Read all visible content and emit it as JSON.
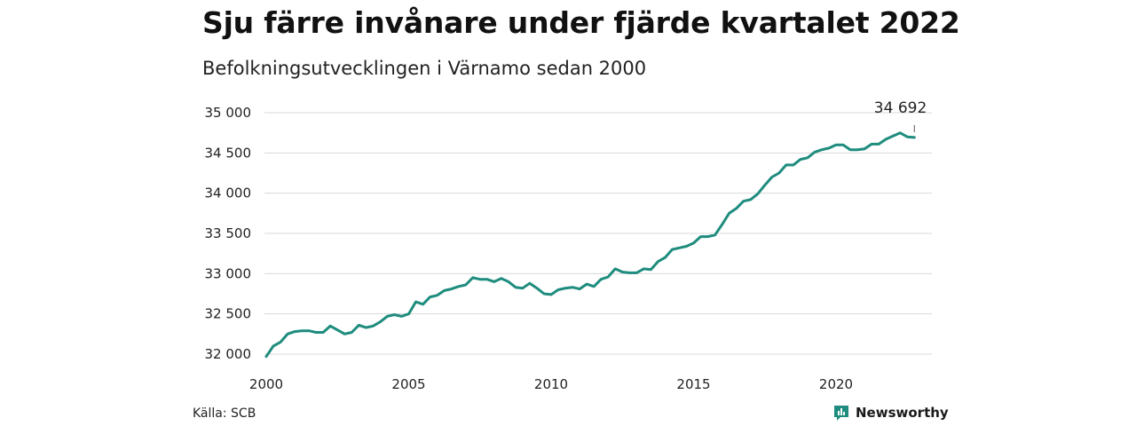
{
  "title": "Sju färre invånare under fjärde kvartalet 2022",
  "subtitle": "Befolkningsutvecklingen i Värnamo sedan 2000",
  "source": "Källa: SCB",
  "brand": {
    "name": "Newsworthy",
    "color": "#1e8c7e"
  },
  "annotation": {
    "label": "34 692"
  },
  "chart_data": {
    "type": "line",
    "title": "Sju färre invånare under fjärde kvartalet 2022",
    "subtitle": "Befolkningsutvecklingen i Värnamo sedan 2000",
    "xlabel": "",
    "ylabel": "",
    "xlim": [
      2000,
      2023.75
    ],
    "ylim": [
      32000,
      35000
    ],
    "x_ticks": [
      2000,
      2005,
      2010,
      2015,
      2020
    ],
    "x_tick_labels": [
      "2000",
      "2005",
      "2010",
      "2015",
      "2020"
    ],
    "y_ticks": [
      32000,
      32500,
      33000,
      33500,
      34000,
      34500,
      35000
    ],
    "y_tick_labels": [
      "32 000",
      "32 500",
      "33 000",
      "33 500",
      "34 000",
      "34 500",
      "35 000"
    ],
    "grid": "horizontal",
    "line_color": "#1e8c7e",
    "series": [
      {
        "x": [
          2000.0,
          2000.25,
          2000.5,
          2000.75,
          2001.0,
          2001.25,
          2001.5,
          2001.75,
          2002.0,
          2002.25,
          2002.5,
          2002.75,
          2003.0,
          2003.25,
          2003.5,
          2003.75,
          2004.0,
          2004.25,
          2004.5,
          2004.75,
          2005.0,
          2005.25,
          2005.5,
          2005.75,
          2006.0,
          2006.25,
          2006.5,
          2006.75,
          2007.0,
          2007.25,
          2007.5,
          2007.75,
          2008.0,
          2008.25,
          2008.5,
          2008.75,
          2009.0,
          2009.25,
          2009.5,
          2009.75,
          2010.0,
          2010.25,
          2010.5,
          2010.75,
          2011.0,
          2011.25,
          2011.5,
          2011.75,
          2012.0,
          2012.25,
          2012.5,
          2012.75,
          2013.0,
          2013.25,
          2013.5,
          2013.75,
          2014.0,
          2014.25,
          2014.5,
          2014.75,
          2015.0,
          2015.25,
          2015.5,
          2015.75,
          2016.0,
          2016.25,
          2016.5,
          2016.75,
          2017.0,
          2017.25,
          2017.5,
          2017.75,
          2018.0,
          2018.25,
          2018.5,
          2018.75,
          2019.0,
          2019.25,
          2019.5,
          2019.75,
          2020.0,
          2020.25,
          2020.5,
          2020.75,
          2021.0,
          2021.25,
          2021.5,
          2021.75,
          2022.0,
          2022.25,
          2022.5,
          2022.75
        ],
        "values": [
          31970,
          32100,
          32150,
          32250,
          32280,
          32290,
          32290,
          32270,
          32270,
          32350,
          32300,
          32250,
          32270,
          32360,
          32330,
          32350,
          32400,
          32470,
          32490,
          32470,
          32500,
          32650,
          32620,
          32710,
          32730,
          32790,
          32810,
          32840,
          32860,
          32950,
          32930,
          32930,
          32900,
          32940,
          32900,
          32830,
          32820,
          32880,
          32820,
          32750,
          32740,
          32800,
          32820,
          32830,
          32810,
          32870,
          32840,
          32930,
          32960,
          33060,
          33020,
          33010,
          33010,
          33060,
          33050,
          33150,
          33200,
          33300,
          33320,
          33340,
          33380,
          33460,
          33460,
          33480,
          33610,
          33750,
          33810,
          33900,
          33920,
          33990,
          34100,
          34200,
          34250,
          34350,
          34350,
          34420,
          34440,
          34510,
          34540,
          34560,
          34600,
          34600,
          34540,
          34540,
          34550,
          34610,
          34610,
          34670,
          34710,
          34750,
          34700,
          34692
        ]
      }
    ],
    "annotations": [
      {
        "x": 2022.75,
        "y": 34692,
        "text": "34 692"
      }
    ]
  }
}
